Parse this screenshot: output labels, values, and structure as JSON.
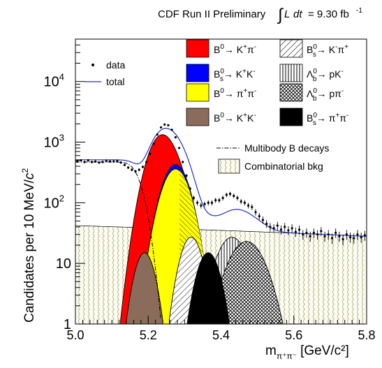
{
  "chart_data": {
    "type": "line",
    "title": "CDF Run II Preliminary ∫L dt = 9.30 fb⁻¹",
    "title_parts": {
      "prefix": "CDF Run II Preliminary",
      "integral": "∫",
      "L": "L",
      "dt": "dt",
      "value": "= 9.30 fb",
      "sup": "-1"
    },
    "xlabel": "m",
    "xlabel_parts": {
      "m": "m",
      "sub": "π⁺π⁻",
      "unit": "[GeV/c²]"
    },
    "ylabel": "Candidates per 10 MeV/c²",
    "ylabel_parts": {
      "main": "Candidates per 10 MeV/",
      "c": "c",
      "sup": "2"
    },
    "xlim": [
      5.0,
      5.8
    ],
    "ylim": [
      1,
      50000
    ],
    "yscale": "log",
    "grid": false,
    "x_ticks": [
      "5.0",
      "5.2",
      "5.4",
      "5.6",
      "5.8"
    ],
    "x_tick_values": [
      5.0,
      5.2,
      5.4,
      5.6,
      5.8
    ],
    "y_ticks": [
      {
        "base": "1",
        "exp": "",
        "value": 1
      },
      {
        "base": "10",
        "exp": "",
        "value": 10
      },
      {
        "base": "10",
        "exp": "2",
        "value": 100
      },
      {
        "base": "10",
        "exp": "3",
        "value": 1000
      },
      {
        "base": "10",
        "exp": "4",
        "value": 10000
      }
    ],
    "legend_left": [
      {
        "label": "data",
        "style": "marker"
      },
      {
        "label": "total",
        "style": "line",
        "color": "#1f2fc8"
      }
    ],
    "legend_right": [
      {
        "label": "B⁰→ K⁺π⁻",
        "style": "fill",
        "color": "#ff0000"
      },
      {
        "label": "B⁰s→ K⁻π⁺",
        "style": "hatch-diag"
      },
      {
        "label": "B⁰s→ K⁺K⁻",
        "style": "fill",
        "color": "#0000ff"
      },
      {
        "label": "Λ⁰b→ pK⁻",
        "style": "hatch-vert"
      },
      {
        "label": "B⁰→ π⁺π⁻",
        "style": "fill",
        "color": "#ffff00"
      },
      {
        "label": "Λ⁰b→ pπ⁻",
        "style": "hatch-cross"
      },
      {
        "label": "B⁰→ K⁺K⁻",
        "style": "fill",
        "color": "#8b6b5a"
      },
      {
        "label": "B⁰s→ π⁺π⁻",
        "style": "fill",
        "color": "#000000"
      },
      {
        "label": "Multibody B decays",
        "style": "dashdot"
      },
      {
        "label": "Combinatorial bkg",
        "style": "wavy"
      }
    ],
    "legend_items": [
      {
        "base": "B",
        "sup": "0",
        "sub": "",
        "arrow": "→ ",
        "final": "K",
        "fsup1": "+",
        "final2": "π",
        "fsup2": "-"
      },
      {
        "base": "B",
        "sup": "0",
        "sub": "s",
        "arrow": "→ ",
        "final": "K",
        "fsup1": "-",
        "final2": "π",
        "fsup2": "+"
      },
      {
        "base": "B",
        "sup": "0",
        "sub": "s",
        "arrow": "→ ",
        "final": "K",
        "fsup1": "+",
        "final2": "K",
        "fsup2": "-"
      },
      {
        "base": "Λ",
        "sup": "0",
        "sub": "b",
        "arrow": "→ ",
        "final": "pK",
        "fsup1": "-",
        "final2": "",
        "fsup2": ""
      },
      {
        "base": "B",
        "sup": "0",
        "sub": "",
        "arrow": "→ ",
        "final": "π",
        "fsup1": "+",
        "final2": "π",
        "fsup2": "-"
      },
      {
        "base": "Λ",
        "sup": "0",
        "sub": "b",
        "arrow": "→ ",
        "final": "pπ",
        "fsup1": "-",
        "final2": "",
        "fsup2": ""
      },
      {
        "base": "B",
        "sup": "0",
        "sub": "",
        "arrow": "→ ",
        "final": "K",
        "fsup1": "+",
        "final2": "K",
        "fsup2": "-"
      },
      {
        "base": "B",
        "sup": "0",
        "sub": "s",
        "arrow": "→ ",
        "final": "π",
        "fsup1": "+",
        "final2": "π",
        "fsup2": "-"
      }
    ],
    "legend_text": {
      "data": "data",
      "total": "total",
      "multibody": "Multibody B decays",
      "combinatorial": "Combinatorial bkg"
    },
    "components": [
      {
        "name": "B⁰→ K⁺π⁻",
        "shape": "gaussian",
        "mean": 5.236,
        "sigma": 0.03,
        "amplitude": 1230
      },
      {
        "name": "B⁰s→ K⁺K⁻",
        "shape": "gaussian",
        "mean": 5.275,
        "sigma": 0.029,
        "amplitude": 425
      },
      {
        "name": "B⁰→ π⁺π⁻",
        "shape": "gaussian",
        "mean": 5.275,
        "sigma": 0.03,
        "amplitude": 360
      },
      {
        "name": "B⁰→ K⁺K⁻",
        "shape": "gaussian",
        "mean": 5.19,
        "sigma": 0.022,
        "amplitude": 15
      },
      {
        "name": "B⁰s→ K⁻π⁺",
        "shape": "gaussian",
        "mean": 5.318,
        "sigma": 0.024,
        "amplitude": 27
      },
      {
        "name": "B⁰s→ π⁺π⁻",
        "shape": "gaussian",
        "mean": 5.365,
        "sigma": 0.025,
        "amplitude": 15
      },
      {
        "name": "Λ⁰b→ pK⁻",
        "shape": "gaussian",
        "mean": 5.43,
        "sigma": 0.034,
        "amplitude": 27
      },
      {
        "name": "Λ⁰b→ pπ⁻",
        "shape": "gaussian",
        "mean": 5.47,
        "sigma": 0.04,
        "amplitude": 23
      },
      {
        "name": "Combinatorial bkg",
        "shape": "linear",
        "start": 42,
        "end": 28
      },
      {
        "name": "Multibody B decays",
        "shape": "plateau-erfc",
        "value_at_5.0": 460,
        "value_at_5.15": 100
      }
    ],
    "data_points": [
      [
        5.005,
        480
      ],
      [
        5.015,
        500
      ],
      [
        5.025,
        470
      ],
      [
        5.035,
        500
      ],
      [
        5.045,
        470
      ],
      [
        5.055,
        480
      ],
      [
        5.065,
        460
      ],
      [
        5.075,
        470
      ],
      [
        5.085,
        490
      ],
      [
        5.095,
        480
      ],
      [
        5.105,
        480
      ],
      [
        5.115,
        490
      ],
      [
        5.125,
        460
      ],
      [
        5.135,
        420
      ],
      [
        5.145,
        380
      ],
      [
        5.155,
        350
      ],
      [
        5.165,
        330
      ],
      [
        5.175,
        350
      ],
      [
        5.185,
        390
      ],
      [
        5.195,
        470
      ],
      [
        5.205,
        640
      ],
      [
        5.215,
        940
      ],
      [
        5.225,
        1330
      ],
      [
        5.235,
        1750
      ],
      [
        5.245,
        1950
      ],
      [
        5.255,
        1900
      ],
      [
        5.265,
        1600
      ],
      [
        5.275,
        1200
      ],
      [
        5.285,
        800
      ],
      [
        5.295,
        470
      ],
      [
        5.305,
        280
      ],
      [
        5.315,
        170
      ],
      [
        5.325,
        120
      ],
      [
        5.335,
        100
      ],
      [
        5.345,
        90
      ],
      [
        5.355,
        95
      ],
      [
        5.365,
        100
      ],
      [
        5.375,
        100
      ],
      [
        5.385,
        110
      ],
      [
        5.395,
        110
      ],
      [
        5.405,
        120
      ],
      [
        5.415,
        135
      ],
      [
        5.425,
        140
      ],
      [
        5.435,
        130
      ],
      [
        5.445,
        120
      ],
      [
        5.455,
        105
      ],
      [
        5.465,
        100
      ],
      [
        5.475,
        90
      ],
      [
        5.485,
        85
      ],
      [
        5.495,
        70
      ],
      [
        5.505,
        60
      ],
      [
        5.515,
        52
      ],
      [
        5.525,
        45
      ],
      [
        5.535,
        40
      ],
      [
        5.545,
        38
      ],
      [
        5.555,
        42
      ],
      [
        5.565,
        36
      ],
      [
        5.575,
        40
      ],
      [
        5.585,
        35
      ],
      [
        5.595,
        38
      ],
      [
        5.605,
        33
      ],
      [
        5.615,
        36
      ],
      [
        5.625,
        30
      ],
      [
        5.635,
        32
      ],
      [
        5.645,
        28
      ],
      [
        5.655,
        32
      ],
      [
        5.665,
        30
      ],
      [
        5.675,
        34
      ],
      [
        5.685,
        28
      ],
      [
        5.695,
        30
      ],
      [
        5.705,
        26
      ],
      [
        5.715,
        32
      ],
      [
        5.725,
        28
      ],
      [
        5.735,
        25
      ],
      [
        5.745,
        30
      ],
      [
        5.755,
        27
      ],
      [
        5.765,
        26
      ],
      [
        5.775,
        30
      ],
      [
        5.785,
        27
      ],
      [
        5.795,
        29
      ]
    ]
  }
}
